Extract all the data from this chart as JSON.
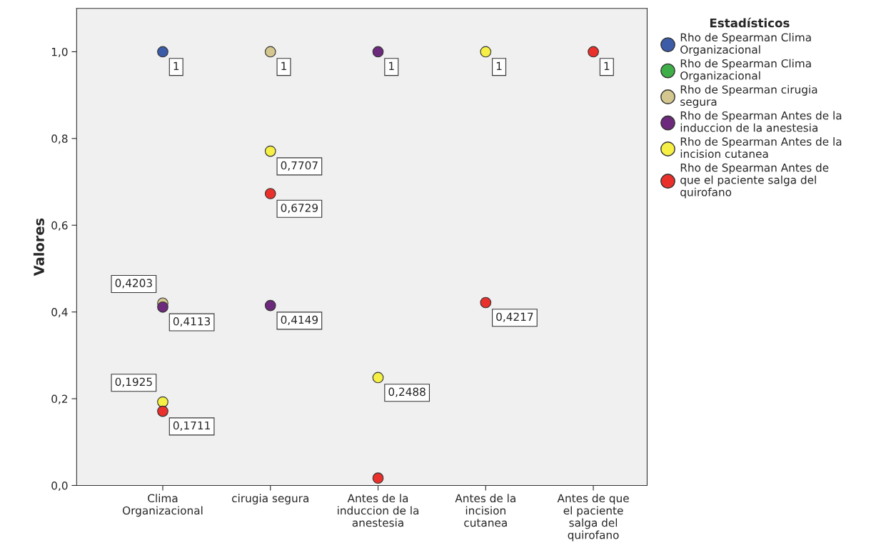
{
  "chart_data": {
    "type": "scatter",
    "ylabel": "Valores",
    "legend_title": "Estadísticos",
    "legend": "right",
    "grid": false,
    "marker": "circle",
    "categories": [
      "Clima\nOrganizacional",
      "cirugia segura",
      "Antes de la\ninduccion de la\nanestesia",
      "Antes de la\nincision\ncutanea",
      "Antes de que\nel paciente\nsalga del\nquirofano"
    ],
    "ylim": [
      0,
      1.1
    ],
    "yticks": [
      {
        "value": 0,
        "label": "0,0"
      },
      {
        "value": 0.2,
        "label": "0,2"
      },
      {
        "value": 0.4,
        "label": "0,4"
      },
      {
        "value": 0.6,
        "label": "0,6"
      },
      {
        "value": 0.8,
        "label": "0,8"
      },
      {
        "value": 1,
        "label": "1,0"
      }
    ],
    "series": [
      {
        "name": "Rho de Spearman Clima\nOrganizacional",
        "color": "#3c5ca8",
        "values": [
          1,
          null,
          null,
          null,
          null
        ],
        "value_labels": [
          "1",
          null,
          null,
          null,
          null
        ]
      },
      {
        "name": "Rho de Spearman Clima\nOrganizacional",
        "color": "#3fae49",
        "values": [
          null,
          null,
          null,
          null,
          null
        ],
        "value_labels": [
          null,
          null,
          null,
          null,
          null
        ]
      },
      {
        "name": "Rho de Spearman cirugia\nsegura",
        "color": "#d3c68e",
        "values": [
          0.4203,
          1,
          null,
          null,
          null
        ],
        "value_labels": [
          "0,4203",
          "1",
          null,
          null,
          null
        ]
      },
      {
        "name": "Rho de Spearman Antes de la\ninduccion de la anestesia",
        "color": "#6d2a7c",
        "values": [
          0.4113,
          0.4149,
          1,
          null,
          null
        ],
        "value_labels": [
          "0,4113",
          "0,4149",
          "1",
          null,
          null
        ]
      },
      {
        "name": "Rho de Spearman Antes de la\nincision cutanea",
        "color": "#f6ef45",
        "values": [
          0.1925,
          0.7707,
          0.2488,
          1,
          null
        ],
        "value_labels": [
          "0,1925",
          "0,7707",
          "0,2488",
          "1",
          null
        ]
      },
      {
        "name": "Rho de Spearman Antes de\nque el paciente salga del\nquirofano",
        "color": "#e9302b",
        "values": [
          0.1711,
          0.6729,
          0.017,
          0.4217,
          1
        ],
        "value_labels": [
          "0,1711",
          "0,6729",
          null,
          "0,4217",
          "1"
        ]
      }
    ]
  }
}
